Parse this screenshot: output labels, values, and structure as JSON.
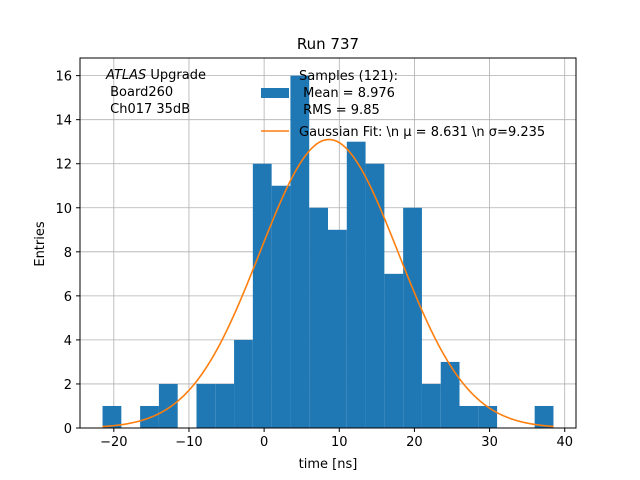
{
  "chart_data": {
    "type": "bar",
    "title": "Run 737",
    "xlabel": "time [ns]",
    "ylabel": "Entries",
    "xlim": [
      -24.5,
      41.5
    ],
    "ylim": [
      0,
      16.8
    ],
    "xticks": [
      -20,
      -10,
      0,
      10,
      20,
      30,
      40
    ],
    "yticks": [
      0,
      2,
      4,
      6,
      8,
      10,
      12,
      14,
      16
    ],
    "grid": true,
    "bin_width": 2.5,
    "bins": [
      {
        "x0": -21.5,
        "value": 1
      },
      {
        "x0": -19.0,
        "value": 0
      },
      {
        "x0": -16.5,
        "value": 1
      },
      {
        "x0": -14.0,
        "value": 2
      },
      {
        "x0": -11.5,
        "value": 0
      },
      {
        "x0": -9.0,
        "value": 2
      },
      {
        "x0": -6.5,
        "value": 2
      },
      {
        "x0": -4.0,
        "value": 4
      },
      {
        "x0": -1.5,
        "value": 12
      },
      {
        "x0": 1.0,
        "value": 11
      },
      {
        "x0": 3.5,
        "value": 16
      },
      {
        "x0": 6.0,
        "value": 10
      },
      {
        "x0": 8.5,
        "value": 9
      },
      {
        "x0": 11.0,
        "value": 13
      },
      {
        "x0": 13.5,
        "value": 12
      },
      {
        "x0": 16.0,
        "value": 7
      },
      {
        "x0": 18.5,
        "value": 10
      },
      {
        "x0": 21.0,
        "value": 2
      },
      {
        "x0": 23.5,
        "value": 3
      },
      {
        "x0": 26.0,
        "value": 1
      },
      {
        "x0": 28.5,
        "value": 1
      },
      {
        "x0": 31.0,
        "value": 0
      },
      {
        "x0": 33.5,
        "value": 0
      },
      {
        "x0": 36.0,
        "value": 1
      }
    ],
    "fit": {
      "type": "gaussian",
      "mu": 8.631,
      "sigma": 9.235,
      "amplitude": 13.1,
      "x_range": [
        -21.5,
        38.5
      ]
    },
    "legend": {
      "placement": "top-center",
      "histogram_label_lines": [
        "Samples (121):",
        " Mean = 8.976",
        " RMS = 9.85"
      ],
      "fit_label": "Gaussian Fit: \\n μ = 8.631 \\n σ=9.235"
    },
    "annotation": {
      "italic_part": "ATLAS",
      "rest_first_line": " Upgrade",
      "lines": [
        " Board260",
        " Ch017 35dB"
      ]
    },
    "colors": {
      "bar": "#1f77b4",
      "fit": "#ff7f0e",
      "grid": "#b0b0b0",
      "axis": "#000000"
    }
  }
}
